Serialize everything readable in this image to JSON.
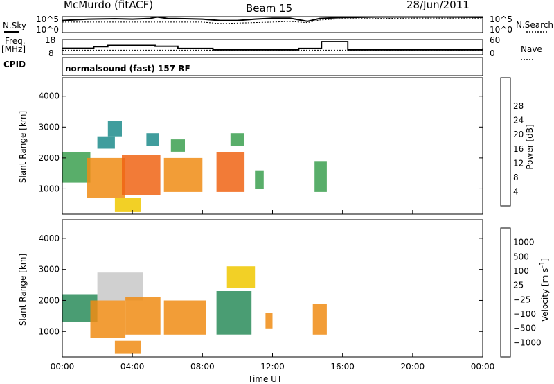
{
  "header": {
    "station": "McMurdo (fitACF)",
    "beam": "Beam 15",
    "date": "28/Jun/2011"
  },
  "noise_panel": {
    "left_label": "N.Sky",
    "right_label": "N.Search",
    "tick_top": "10^5",
    "tick_bottom": "10^0"
  },
  "freq_panel": {
    "left_label_1": "Freq.",
    "left_label_2": "[MHz]",
    "right_label": "Nave",
    "left_tick_top": "18",
    "left_tick_bottom": "8",
    "right_tick_top": "60",
    "right_tick_bottom": "0"
  },
  "cpid": {
    "label": "CPID",
    "mode": "normalsound (fast) 157 RF"
  },
  "x_axis": {
    "title": "Time UT",
    "ticks": [
      "00:00",
      "04:00",
      "08:00",
      "12:00",
      "16:00",
      "20:00",
      "00:00"
    ]
  },
  "colors": {
    "power_scale": [
      "#1414f0",
      "#2850b4",
      "#1e8c8c",
      "#3ca050",
      "#78c850",
      "#f0c800",
      "#f08c14",
      "#f06414",
      "#e61414"
    ],
    "velocity_scale": [
      "#e61414",
      "#f05014",
      "#f08c14",
      "#f0c800",
      "#c8c8c8",
      "#5ab43c",
      "#2a8c5a",
      "#2850b4",
      "#1414c8"
    ]
  },
  "chart_data": [
    {
      "type": "line",
      "panel": "noise",
      "x_unit": "hours UT",
      "series": [
        {
          "name": "N.Sky",
          "x": [
            0,
            1.5,
            3,
            4,
            5,
            5.4,
            6,
            7,
            8,
            9,
            10,
            11,
            12,
            13,
            14,
            14.7,
            16,
            18,
            20,
            22,
            24
          ],
          "y": [
            10000,
            30000,
            40000,
            30000,
            50000,
            150000,
            50000,
            40000,
            30000,
            10000,
            10000,
            30000,
            60000,
            60000,
            5000,
            50000,
            100000,
            150000,
            150000,
            150000,
            120000
          ]
        },
        {
          "name": "N.Search",
          "x": [
            0,
            4,
            8,
            9,
            12,
            13,
            14,
            14.7,
            16,
            20,
            24
          ],
          "y": [
            3000,
            3000,
            3000,
            1000,
            3000,
            5000,
            2000,
            15000,
            40000,
            60000,
            60000
          ]
        }
      ]
    },
    {
      "type": "line",
      "panel": "frequency",
      "x_unit": "hours UT",
      "series": [
        {
          "name": "Freq. [MHz]",
          "x": [
            0,
            1.8,
            2.6,
            5.3,
            6.6,
            7.5,
            8.6,
            13.5,
            14.8,
            16.3,
            24
          ],
          "y": [
            12.3,
            13.3,
            14.2,
            13.6,
            12.2,
            12.2,
            11.2,
            12.2,
            16.6,
            11.2,
            12.2
          ]
        },
        {
          "name": "Nave",
          "x": [
            0,
            24
          ],
          "y": [
            18,
            18
          ]
        }
      ]
    },
    {
      "type": "heatmap",
      "panel": "power",
      "xlabel": "Time UT",
      "ylabel": "Slant Range [km]",
      "colorbar_label": "Power [dB]",
      "colorbar_ticks": [
        4,
        8,
        12,
        16,
        20,
        24,
        28
      ],
      "ylim": [
        180,
        4600
      ],
      "xlim": [
        0,
        24
      ],
      "y_ticks": [
        1000,
        2000,
        3000,
        4000
      ],
      "regions": [
        {
          "x0": 0.0,
          "x1": 1.6,
          "y0": 1200,
          "y1": 2200,
          "value": 14
        },
        {
          "x0": 1.4,
          "x1": 3.6,
          "y0": 700,
          "y1": 2000,
          "value": 24
        },
        {
          "x0": 2.0,
          "x1": 3.0,
          "y0": 2300,
          "y1": 2700,
          "value": 10
        },
        {
          "x0": 2.6,
          "x1": 3.4,
          "y0": 2700,
          "y1": 3200,
          "value": 8
        },
        {
          "x0": 3.4,
          "x1": 5.6,
          "y0": 800,
          "y1": 2100,
          "value": 26
        },
        {
          "x0": 3.0,
          "x1": 4.5,
          "y0": 250,
          "y1": 700,
          "value": 18
        },
        {
          "x0": 4.8,
          "x1": 5.5,
          "y0": 2400,
          "y1": 2800,
          "value": 10
        },
        {
          "x0": 5.8,
          "x1": 8.0,
          "y0": 900,
          "y1": 2000,
          "value": 22
        },
        {
          "x0": 6.2,
          "x1": 7.0,
          "y0": 2200,
          "y1": 2600,
          "value": 12
        },
        {
          "x0": 8.8,
          "x1": 10.4,
          "y0": 900,
          "y1": 2200,
          "value": 26
        },
        {
          "x0": 9.6,
          "x1": 10.4,
          "y0": 2400,
          "y1": 2800,
          "value": 12
        },
        {
          "x0": 11.0,
          "x1": 11.5,
          "y0": 1000,
          "y1": 1600,
          "value": 12
        },
        {
          "x0": 14.4,
          "x1": 15.1,
          "y0": 900,
          "y1": 1900,
          "value": 14
        }
      ]
    },
    {
      "type": "heatmap",
      "panel": "velocity",
      "xlabel": "Time UT",
      "ylabel": "Slant Range [km]",
      "colorbar_label": "Velocity [m s^-1]",
      "colorbar_ticks": [
        1000,
        500,
        100,
        25,
        -25,
        -100,
        -500,
        -1000
      ],
      "ylim": [
        180,
        4600
      ],
      "xlim": [
        0,
        24
      ],
      "y_ticks": [
        1000,
        2000,
        3000,
        4000
      ],
      "regions": [
        {
          "x0": 0.0,
          "x1": 2.0,
          "y0": 1300,
          "y1": 2200,
          "value": 300
        },
        {
          "x0": 1.6,
          "x1": 3.6,
          "y0": 800,
          "y1": 2000,
          "value": -150
        },
        {
          "x0": 2.0,
          "x1": 4.6,
          "y0": 2000,
          "y1": 2900,
          "value": 10
        },
        {
          "x0": 3.6,
          "x1": 5.6,
          "y0": 900,
          "y1": 2100,
          "value": -200
        },
        {
          "x0": 3.0,
          "x1": 4.5,
          "y0": 300,
          "y1": 700,
          "value": -300
        },
        {
          "x0": 5.8,
          "x1": 8.2,
          "y0": 900,
          "y1": 2000,
          "value": -100
        },
        {
          "x0": 8.8,
          "x1": 10.8,
          "y0": 900,
          "y1": 2300,
          "value": 200
        },
        {
          "x0": 9.4,
          "x1": 11.0,
          "y0": 2400,
          "y1": 3100,
          "value": -80
        },
        {
          "x0": 11.6,
          "x1": 12.0,
          "y0": 1100,
          "y1": 1600,
          "value": -200
        },
        {
          "x0": 14.3,
          "x1": 15.1,
          "y0": 900,
          "y1": 1900,
          "value": -150
        }
      ]
    }
  ]
}
